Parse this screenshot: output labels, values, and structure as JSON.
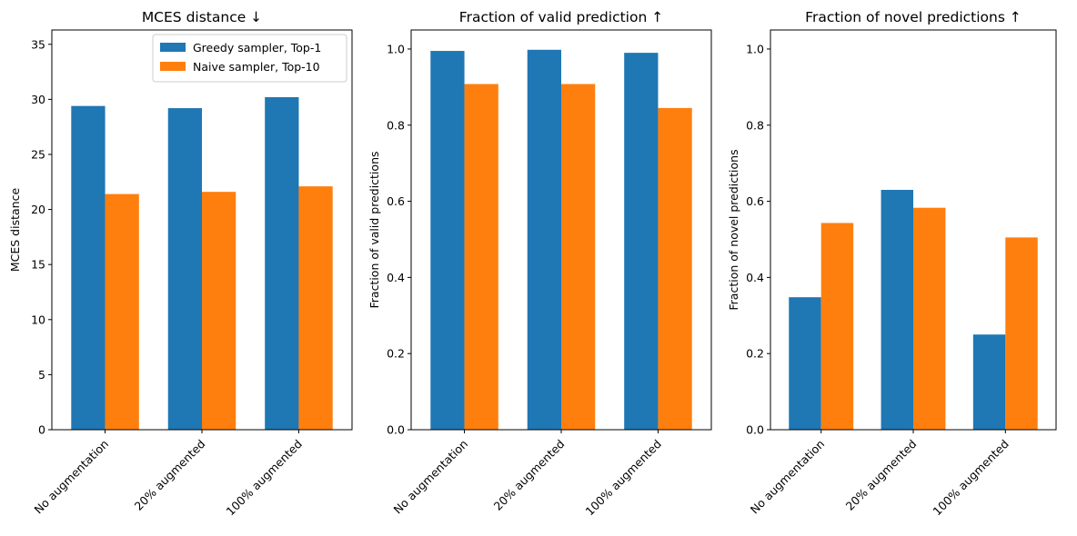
{
  "chart_data": [
    {
      "type": "bar",
      "title": "MCES distance ↓",
      "xlabel": "",
      "ylabel": "MCES distance",
      "categories": [
        "No augmentation",
        "20% augmented",
        "100% augmented"
      ],
      "series": [
        {
          "name": "Greedy sampler, Top-1",
          "color": "#1f77b4",
          "values": [
            29.4,
            29.2,
            30.2
          ]
        },
        {
          "name": "Naive sampler, Top-10",
          "color": "#ff7f0e",
          "values": [
            21.4,
            21.6,
            22.1
          ]
        }
      ],
      "ylim": [
        0,
        36.3
      ],
      "yticks": [
        "0",
        "5",
        "10",
        "15",
        "20",
        "25",
        "30",
        "35"
      ],
      "legend": "top-right",
      "grid": false
    },
    {
      "type": "bar",
      "title": "Fraction of valid prediction ↑",
      "xlabel": "",
      "ylabel": "Fraction of valid predictions",
      "categories": [
        "No augmentation",
        "20% augmented",
        "100% augmented"
      ],
      "series": [
        {
          "color": "#1f77b4",
          "values": [
            0.995,
            0.998,
            0.99
          ]
        },
        {
          "color": "#ff7f0e",
          "values": [
            0.908,
            0.908,
            0.845
          ]
        }
      ],
      "ylim": [
        0,
        1.05
      ],
      "yticks": [
        "0.0",
        "0.2",
        "0.4",
        "0.6",
        "0.8",
        "1.0"
      ],
      "grid": false
    },
    {
      "type": "bar",
      "title": "Fraction of novel predictions ↑",
      "xlabel": "",
      "ylabel": "Fraction of novel predictions",
      "categories": [
        "No augmentation",
        "20% augmented",
        "100% augmented"
      ],
      "series": [
        {
          "color": "#1f77b4",
          "values": [
            0.348,
            0.63,
            0.25
          ]
        },
        {
          "color": "#ff7f0e",
          "values": [
            0.543,
            0.583,
            0.505
          ]
        }
      ],
      "ylim": [
        0,
        1.05
      ],
      "yticks": [
        "0.0",
        "0.2",
        "0.4",
        "0.6",
        "0.8",
        "1.0"
      ],
      "grid": false
    }
  ]
}
